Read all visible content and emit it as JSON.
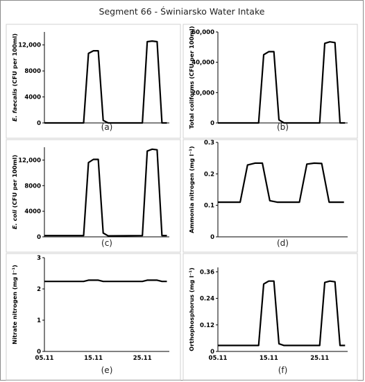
{
  "title": "Segment 66 - Świniarsko Water Intake",
  "chart_data": [
    {
      "type": "line",
      "panel": "(a)",
      "ylabel_italic": "E. faecalis",
      "ylabel_rest": " (CFU per 100ml)",
      "ylim": [
        0,
        14000
      ],
      "yticks": [
        0,
        4000,
        8000,
        12000
      ],
      "ytick_labels": [
        "0",
        "4000",
        "8000",
        "12,000"
      ],
      "xticks": [],
      "series": [
        {
          "x": [
            0,
            8,
            9,
            10,
            11,
            12,
            13,
            20,
            21,
            22,
            23,
            24,
            25
          ],
          "y": [
            0,
            0,
            10700,
            11100,
            11100,
            400,
            0,
            0,
            12500,
            12600,
            12500,
            0,
            0
          ]
        }
      ]
    },
    {
      "type": "line",
      "panel": "(b)",
      "ylabel_italic": "",
      "ylabel_rest": "Total coliforms (CFU per 100ml)",
      "ylim": [
        0,
        60000
      ],
      "yticks": [
        0,
        20000,
        40000,
        60000
      ],
      "ytick_labels": [
        "0",
        "20,000",
        "40,000",
        "60,000"
      ],
      "xticks": [],
      "series": [
        {
          "x": [
            0,
            8,
            9,
            10,
            11,
            12,
            13,
            20,
            21,
            22,
            23,
            24,
            25
          ],
          "y": [
            0,
            0,
            45000,
            47000,
            47000,
            2000,
            0,
            0,
            52500,
            53500,
            53000,
            0,
            0
          ]
        }
      ]
    },
    {
      "type": "line",
      "panel": "(c)",
      "ylabel_italic": "E. coli",
      "ylabel_rest": " (CFU per 100ml)",
      "ylim": [
        0,
        14000
      ],
      "yticks": [
        0,
        4000,
        8000,
        12000
      ],
      "ytick_labels": [
        "0",
        "4000",
        "8000",
        "12,000"
      ],
      "xticks": [],
      "series": [
        {
          "x": [
            0,
            8,
            9,
            10,
            11,
            12,
            13,
            20,
            21,
            22,
            23,
            24,
            25
          ],
          "y": [
            200,
            200,
            11600,
            12100,
            12100,
            600,
            150,
            200,
            13400,
            13700,
            13600,
            200,
            200
          ]
        }
      ]
    },
    {
      "type": "line",
      "panel": "(d)",
      "ylabel_italic": "",
      "ylabel_rest": "Ammonia nitrogen (mg l⁻¹)",
      "ylim": [
        0,
        0.3
      ],
      "yticks": [
        0,
        0.1,
        0.2,
        0.3
      ],
      "ytick_labels": [
        "0",
        "0.1",
        "0.2",
        "0.3"
      ],
      "xticks": [],
      "series": [
        {
          "x": [
            0,
            3,
            4,
            5,
            6,
            7,
            8,
            11,
            12,
            13,
            14,
            15,
            16,
            17
          ],
          "y": [
            0.11,
            0.11,
            0.228,
            0.234,
            0.234,
            0.115,
            0.11,
            0.11,
            0.231,
            0.234,
            0.233,
            0.11,
            0.11,
            0.11
          ]
        }
      ]
    },
    {
      "type": "line",
      "panel": "(e)",
      "ylabel_italic": "",
      "ylabel_rest": "Nitrate nitrogen (mg l⁻¹)",
      "ylim": [
        0,
        3
      ],
      "yticks": [
        0,
        1,
        2,
        3
      ],
      "ytick_labels": [
        "0",
        "1",
        "2",
        "3"
      ],
      "xticks": [
        0,
        10,
        20
      ],
      "xtick_labels": [
        "05.11",
        "15.11",
        "25.11"
      ],
      "series": [
        {
          "x": [
            0,
            8,
            9,
            10,
            11,
            12,
            13,
            20,
            21,
            22,
            23,
            24,
            25
          ],
          "y": [
            2.24,
            2.24,
            2.28,
            2.28,
            2.28,
            2.24,
            2.24,
            2.24,
            2.28,
            2.28,
            2.28,
            2.24,
            2.24
          ]
        }
      ]
    },
    {
      "type": "line",
      "panel": "(f)",
      "ylabel_italic": "",
      "ylabel_rest": "Orthophosphorus (mg l⁻¹)",
      "ylim": [
        0,
        0.38
      ],
      "yticks": [
        0,
        0.12,
        0.24,
        0.36
      ],
      "ytick_labels": [
        "0",
        "0.12",
        "0.24",
        "0.36"
      ],
      "xticks": [
        0,
        10,
        20
      ],
      "xtick_labels": [
        "05.11",
        "15.11",
        "25.11"
      ],
      "series": [
        {
          "x": [
            0,
            8,
            9,
            10,
            11,
            12,
            13,
            20,
            21,
            22,
            23,
            24,
            25
          ],
          "y": [
            0.027,
            0.027,
            0.305,
            0.318,
            0.318,
            0.035,
            0.027,
            0.027,
            0.312,
            0.318,
            0.315,
            0.027,
            0.027
          ]
        }
      ]
    }
  ]
}
